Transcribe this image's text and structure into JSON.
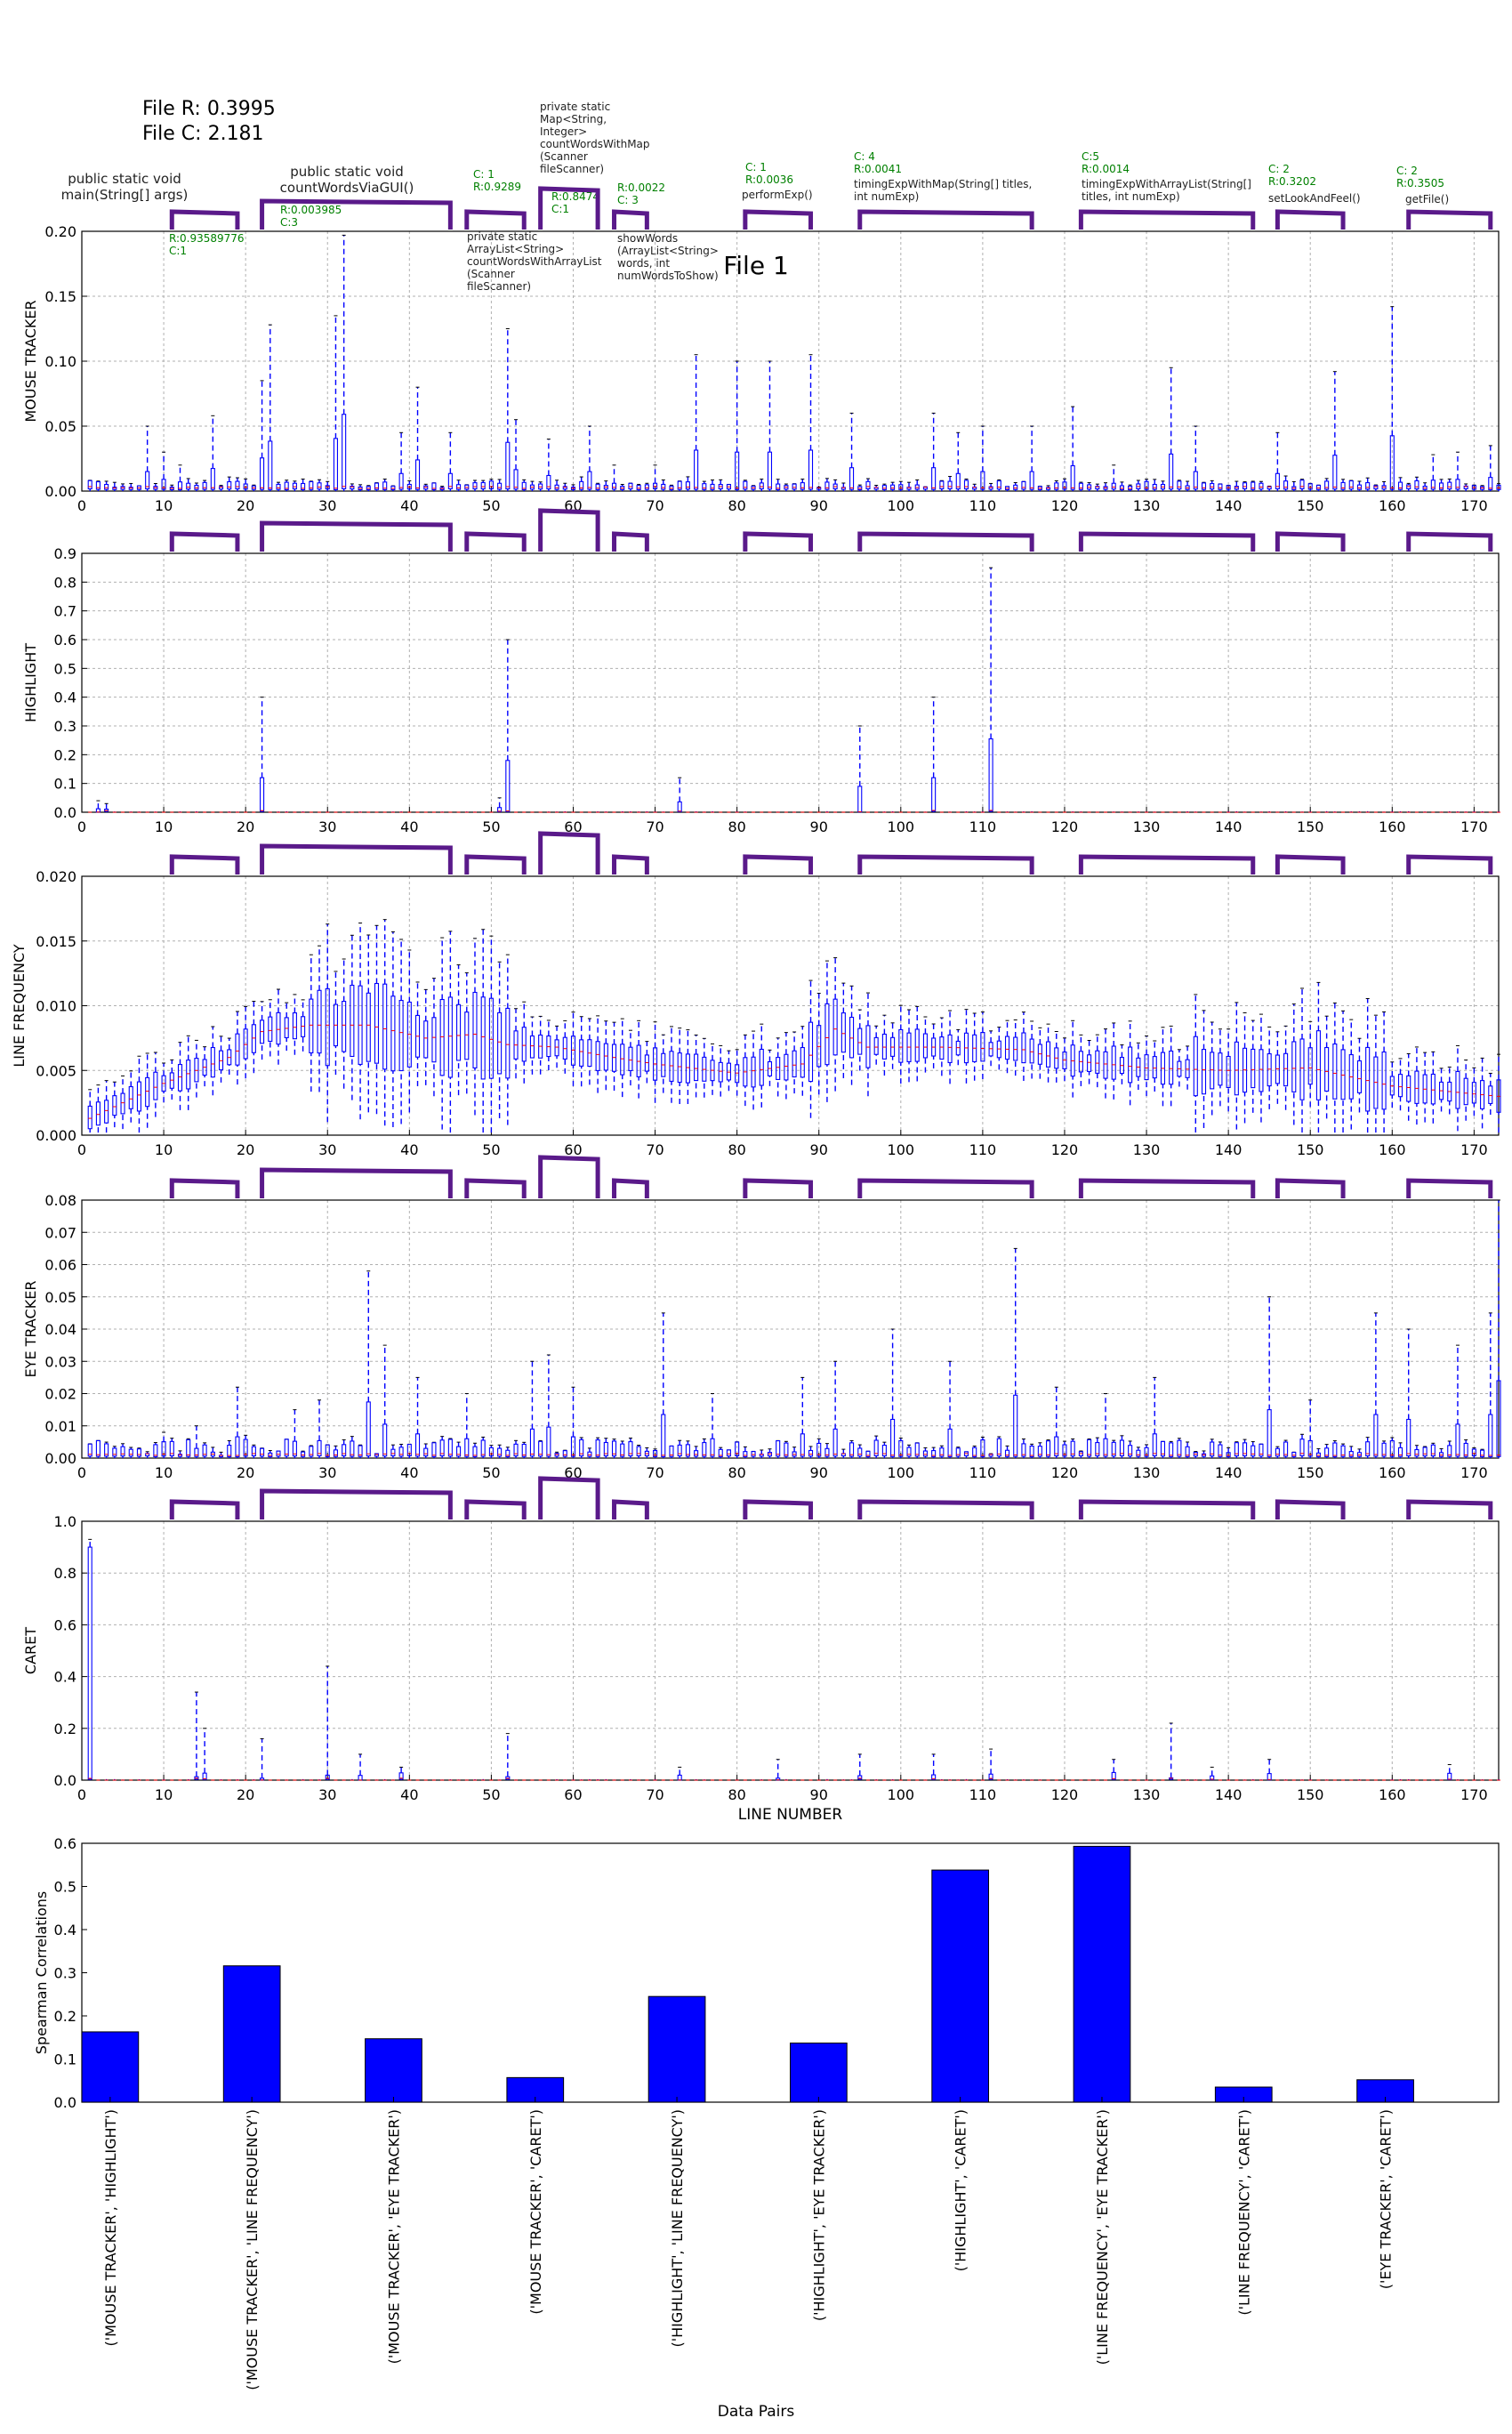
{
  "header": {
    "file_r": "File R: 0.3995",
    "file_c": "File C: 2.181",
    "plot_title": "File 1"
  },
  "colors": {
    "box": "#0000ff",
    "median": "#ff0000",
    "method_bracket": "#5a1a8a",
    "method_stats": "#008000",
    "bar": "#0000ff",
    "grid": "#b0b0b0"
  },
  "methods": [
    {
      "name": "public static void main(String[] args)",
      "stats": "R:0.93589776 C:1",
      "start": 11,
      "end": 19
    },
    {
      "name": "public static void countWordsViaGUI()",
      "stats": "R:0.003985 C:3",
      "start": 22,
      "end": 45
    },
    {
      "name": "private static ArrayList<String> countWordsWithArrayList (Scanner fileScanner)",
      "stats": "C: 1 R:0.9289",
      "start": 47,
      "end": 54
    },
    {
      "name": "private static Map<String, Integer> countWordsWithMap (Scanner fileScanner)",
      "stats": "R:0.8474 C:1",
      "start": 56,
      "end": 63
    },
    {
      "name": "showWords (ArrayList<String> words, int numWordsToShow)",
      "stats": "R:0.0022 C: 3",
      "start": 65,
      "end": 69
    },
    {
      "name": "performExp()",
      "stats": "C: 1 R:0.0036",
      "start": 81,
      "end": 89
    },
    {
      "name": "timingExpWithMap(String[] titles, int numExp)",
      "stats": "C: 4 R:0.0041",
      "start": 95,
      "end": 116
    },
    {
      "name": "timingExpWithArrayList(String[] titles, int numExp)",
      "stats": "C:5 R:0.0014",
      "start": 122,
      "end": 143
    },
    {
      "name": "setLookAndFeel()",
      "stats": "C: 2 R:0.3202",
      "start": 146,
      "end": 154
    },
    {
      "name": "getFile()",
      "stats": "C: 2 R:0.3505",
      "start": 162,
      "end": 172
    }
  ],
  "chart_data": [
    {
      "type": "box",
      "ylabel": "MOUSE TRACKER",
      "xlabel": "",
      "xlim": [
        0,
        173
      ],
      "ylim": [
        0,
        0.2
      ],
      "yticks": [
        "0.00",
        "0.05",
        "0.10",
        "0.15",
        "0.20"
      ],
      "xticks": [
        "0",
        "10",
        "20",
        "30",
        "40",
        "50",
        "60",
        "70",
        "80",
        "90",
        "100",
        "110",
        "120",
        "130",
        "140",
        "150",
        "160",
        "170"
      ],
      "grid": true,
      "whisker_peaks": [
        [
          8,
          0.05
        ],
        [
          10,
          0.03
        ],
        [
          12,
          0.02
        ],
        [
          16,
          0.058
        ],
        [
          22,
          0.085
        ],
        [
          23,
          0.128
        ],
        [
          31,
          0.135
        ],
        [
          32,
          0.197
        ],
        [
          39,
          0.045
        ],
        [
          41,
          0.08
        ],
        [
          45,
          0.045
        ],
        [
          52,
          0.125
        ],
        [
          53,
          0.055
        ],
        [
          57,
          0.04
        ],
        [
          62,
          0.05
        ],
        [
          65,
          0.02
        ],
        [
          70,
          0.02
        ],
        [
          75,
          0.105
        ],
        [
          80,
          0.1
        ],
        [
          84,
          0.1
        ],
        [
          89,
          0.105
        ],
        [
          94,
          0.06
        ],
        [
          104,
          0.06
        ],
        [
          107,
          0.045
        ],
        [
          110,
          0.05
        ],
        [
          116,
          0.05
        ],
        [
          121,
          0.065
        ],
        [
          126,
          0.02
        ],
        [
          133,
          0.095
        ],
        [
          136,
          0.05
        ],
        [
          146,
          0.045
        ],
        [
          153,
          0.092
        ],
        [
          160,
          0.142
        ],
        [
          165,
          0.028
        ],
        [
          168,
          0.03
        ],
        [
          172,
          0.035
        ]
      ]
    },
    {
      "type": "box",
      "ylabel": "HIGHLIGHT",
      "xlabel": "",
      "xlim": [
        0,
        173
      ],
      "ylim": [
        0,
        0.9
      ],
      "yticks": [
        "0.0",
        "0.1",
        "0.2",
        "0.3",
        "0.4",
        "0.5",
        "0.6",
        "0.7",
        "0.8",
        "0.9"
      ],
      "xticks": [
        "0",
        "10",
        "20",
        "30",
        "40",
        "50",
        "60",
        "70",
        "80",
        "90",
        "100",
        "110",
        "120",
        "130",
        "140",
        "150",
        "160",
        "170"
      ],
      "grid": true,
      "whisker_peaks": [
        [
          2,
          0.04
        ],
        [
          3,
          0.03
        ],
        [
          22,
          0.4
        ],
        [
          51,
          0.05
        ],
        [
          52,
          0.6
        ],
        [
          73,
          0.12
        ],
        [
          95,
          0.3
        ],
        [
          104,
          0.4
        ],
        [
          111,
          0.85
        ]
      ]
    },
    {
      "type": "box",
      "ylabel": "LINE FREQUENCY",
      "xlabel": "",
      "xlim": [
        0,
        173
      ],
      "ylim": [
        0,
        0.02
      ],
      "yticks": [
        "0.000",
        "0.005",
        "0.010",
        "0.015",
        "0.020"
      ],
      "xticks": [
        "0",
        "10",
        "20",
        "30",
        "40",
        "50",
        "60",
        "70",
        "80",
        "90",
        "100",
        "110",
        "120",
        "130",
        "140",
        "150",
        "160",
        "170"
      ],
      "grid": true,
      "median_profile": [
        [
          0,
          0.001
        ],
        [
          5,
          0.0025
        ],
        [
          10,
          0.004
        ],
        [
          18,
          0.006
        ],
        [
          22,
          0.008
        ],
        [
          28,
          0.0085
        ],
        [
          35,
          0.0085
        ],
        [
          42,
          0.0075
        ],
        [
          48,
          0.0078
        ],
        [
          52,
          0.007
        ],
        [
          58,
          0.0068
        ],
        [
          65,
          0.006
        ],
        [
          70,
          0.0055
        ],
        [
          80,
          0.0048
        ],
        [
          88,
          0.0055
        ],
        [
          92,
          0.0082
        ],
        [
          96,
          0.0068
        ],
        [
          105,
          0.0068
        ],
        [
          115,
          0.0066
        ],
        [
          120,
          0.0058
        ],
        [
          130,
          0.0052
        ],
        [
          140,
          0.005
        ],
        [
          150,
          0.0052
        ],
        [
          160,
          0.0038
        ],
        [
          173,
          0.003
        ]
      ]
    },
    {
      "type": "box",
      "ylabel": "EYE TRACKER",
      "xlabel": "",
      "xlim": [
        0,
        173
      ],
      "ylim": [
        0,
        0.08
      ],
      "yticks": [
        "0.00",
        "0.01",
        "0.02",
        "0.03",
        "0.04",
        "0.05",
        "0.06",
        "0.07",
        "0.08"
      ],
      "xticks": [
        "0",
        "10",
        "20",
        "30",
        "40",
        "50",
        "60",
        "70",
        "80",
        "90",
        "100",
        "110",
        "120",
        "130",
        "140",
        "150",
        "160",
        "170"
      ],
      "grid": true,
      "whisker_peaks": [
        [
          10,
          0.008
        ],
        [
          14,
          0.01
        ],
        [
          19,
          0.022
        ],
        [
          26,
          0.015
        ],
        [
          29,
          0.018
        ],
        [
          35,
          0.058
        ],
        [
          37,
          0.035
        ],
        [
          41,
          0.025
        ],
        [
          47,
          0.02
        ],
        [
          55,
          0.03
        ],
        [
          57,
          0.032
        ],
        [
          60,
          0.022
        ],
        [
          71,
          0.045
        ],
        [
          77,
          0.02
        ],
        [
          88,
          0.025
        ],
        [
          92,
          0.03
        ],
        [
          99,
          0.04
        ],
        [
          106,
          0.03
        ],
        [
          114,
          0.065
        ],
        [
          119,
          0.022
        ],
        [
          125,
          0.02
        ],
        [
          131,
          0.025
        ],
        [
          145,
          0.05
        ],
        [
          150,
          0.018
        ],
        [
          158,
          0.045
        ],
        [
          162,
          0.04
        ],
        [
          168,
          0.035
        ],
        [
          172,
          0.045
        ],
        [
          173,
          0.08
        ]
      ]
    },
    {
      "type": "box",
      "ylabel": "CARET",
      "xlabel": "LINE NUMBER",
      "xlim": [
        0,
        173
      ],
      "ylim": [
        0,
        1.0
      ],
      "yticks": [
        "0.0",
        "0.2",
        "0.4",
        "0.6",
        "0.8",
        "1.0"
      ],
      "xticks": [
        "0",
        "10",
        "20",
        "30",
        "40",
        "50",
        "60",
        "70",
        "80",
        "90",
        "100",
        "110",
        "120",
        "130",
        "140",
        "150",
        "160",
        "170"
      ],
      "grid": true,
      "whisker_peaks": [
        [
          1,
          0.93
        ],
        [
          14,
          0.34
        ],
        [
          15,
          0.2
        ],
        [
          22,
          0.16
        ],
        [
          30,
          0.44
        ],
        [
          34,
          0.1
        ],
        [
          39,
          0.05
        ],
        [
          52,
          0.18
        ],
        [
          73,
          0.05
        ],
        [
          85,
          0.08
        ],
        [
          95,
          0.1
        ],
        [
          104,
          0.1
        ],
        [
          111,
          0.12
        ],
        [
          126,
          0.08
        ],
        [
          133,
          0.22
        ],
        [
          138,
          0.05
        ],
        [
          145,
          0.08
        ],
        [
          167,
          0.06
        ]
      ]
    },
    {
      "type": "bar",
      "ylabel": "Spearman Correlations",
      "xlabel": "Data Pairs",
      "ylim": [
        0,
        0.6
      ],
      "yticks": [
        "0.0",
        "0.1",
        "0.2",
        "0.3",
        "0.4",
        "0.5",
        "0.6"
      ],
      "grid": false,
      "categories": [
        "('MOUSE TRACKER', 'HIGHLIGHT')",
        "('MOUSE TRACKER', 'LINE FREQUENCY')",
        "('MOUSE TRACKER', 'EYE TRACKER')",
        "('MOUSE TRACKER', 'CARET')",
        "('HIGHLIGHT', 'LINE FREQUENCY')",
        "('HIGHLIGHT', 'EYE TRACKER')",
        "('HIGHLIGHT', 'CARET')",
        "('LINE FREQUENCY', 'EYE TRACKER')",
        "('LINE FREQUENCY', 'CARET')",
        "('EYE TRACKER', 'CARET')"
      ],
      "values": [
        0.163,
        0.316,
        0.147,
        0.057,
        0.245,
        0.137,
        0.538,
        0.593,
        0.035,
        0.052
      ]
    }
  ]
}
